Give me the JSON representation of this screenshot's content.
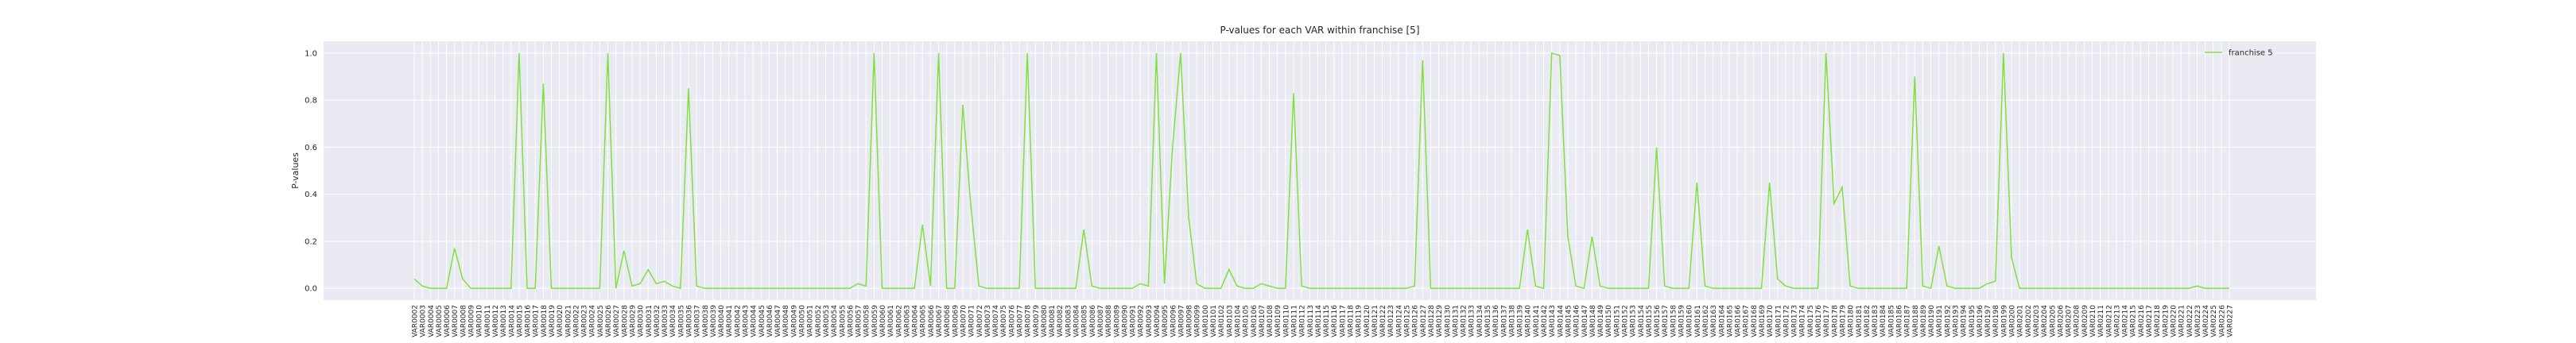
{
  "chart_data": {
    "type": "line",
    "title": "P-values for each VAR within franchise [5]",
    "y_label": "P-values",
    "categories": [
      "VAR0002",
      "VAR0003",
      "VAR0004",
      "VAR0005",
      "VAR0006",
      "VAR0007",
      "VAR0008",
      "VAR0009",
      "VAR0010",
      "VAR0011",
      "VAR0012",
      "VAR0013",
      "VAR0014",
      "VAR0015",
      "VAR0016",
      "VAR0017",
      "VAR0018",
      "VAR0019",
      "VAR0020",
      "VAR0021",
      "VAR0022",
      "VAR0023",
      "VAR0024",
      "VAR0025",
      "VAR0026",
      "VAR0027",
      "VAR0028",
      "VAR0029",
      "VAR0030",
      "VAR0031",
      "VAR0032",
      "VAR0033",
      "VAR0034",
      "VAR0035",
      "VAR0036",
      "VAR0037",
      "VAR0038",
      "VAR0039",
      "VAR0040",
      "VAR0041",
      "VAR0042",
      "VAR0043",
      "VAR0044",
      "VAR0045",
      "VAR0046",
      "VAR0047",
      "VAR0048",
      "VAR0049",
      "VAR0050",
      "VAR0051",
      "VAR0052",
      "VAR0053",
      "VAR0054",
      "VAR0055",
      "VAR0056",
      "VAR0057",
      "VAR0058",
      "VAR0059",
      "VAR0060",
      "VAR0061",
      "VAR0062",
      "VAR0063",
      "VAR0064",
      "VAR0065",
      "VAR0066",
      "VAR0067",
      "VAR0068",
      "VAR0069",
      "VAR0070",
      "VAR0071",
      "VAR0072",
      "VAR0073",
      "VAR0074",
      "VAR0075",
      "VAR0076",
      "VAR0077",
      "VAR0078",
      "VAR0079",
      "VAR0080",
      "VAR0081",
      "VAR0082",
      "VAR0083",
      "VAR0084",
      "VAR0085",
      "VAR0086",
      "VAR0087",
      "VAR0088",
      "VAR0089",
      "VAR0090",
      "VAR0091",
      "VAR0092",
      "VAR0093",
      "VAR0094",
      "VAR0095",
      "VAR0096",
      "VAR0097",
      "VAR0098",
      "VAR0099",
      "VAR0100",
      "VAR0101",
      "VAR0102",
      "VAR0103",
      "VAR0104",
      "VAR0105",
      "VAR0106",
      "VAR0107",
      "VAR0108",
      "VAR0109",
      "VAR0110",
      "VAR0111",
      "VAR0112",
      "VAR0113",
      "VAR0114",
      "VAR0115",
      "VAR0116",
      "VAR0117",
      "VAR0118",
      "VAR0119",
      "VAR0120",
      "VAR0121",
      "VAR0122",
      "VAR0123",
      "VAR0124",
      "VAR0125",
      "VAR0126",
      "VAR0127",
      "VAR0128",
      "VAR0129",
      "VAR0130",
      "VAR0131",
      "VAR0132",
      "VAR0133",
      "VAR0134",
      "VAR0135",
      "VAR0136",
      "VAR0137",
      "VAR0138",
      "VAR0139",
      "VAR0140",
      "VAR0141",
      "VAR0142",
      "VAR0143",
      "VAR0144",
      "VAR0145",
      "VAR0146",
      "VAR0147",
      "VAR0148",
      "VAR0149",
      "VAR0150",
      "VAR0151",
      "VAR0152",
      "VAR0153",
      "VAR0154",
      "VAR0155",
      "VAR0156",
      "VAR0157",
      "VAR0158",
      "VAR0159",
      "VAR0160",
      "VAR0161",
      "VAR0162",
      "VAR0163",
      "VAR0164",
      "VAR0165",
      "VAR0166",
      "VAR0167",
      "VAR0168",
      "VAR0169",
      "VAR0170",
      "VAR0171",
      "VAR0172",
      "VAR0173",
      "VAR0174",
      "VAR0175",
      "VAR0176",
      "VAR0177",
      "VAR0178",
      "VAR0179",
      "VAR0180",
      "VAR0181",
      "VAR0182",
      "VAR0183",
      "VAR0184",
      "VAR0185",
      "VAR0186",
      "VAR0187",
      "VAR0188",
      "VAR0189",
      "VAR0190",
      "VAR0191",
      "VAR0192",
      "VAR0193",
      "VAR0194",
      "VAR0195",
      "VAR0196",
      "VAR0197",
      "VAR0198",
      "VAR0199",
      "VAR0200",
      "VAR0201",
      "VAR0202",
      "VAR0203",
      "VAR0204",
      "VAR0205",
      "VAR0206",
      "VAR0207",
      "VAR0208",
      "VAR0209",
      "VAR0210",
      "VAR0211",
      "VAR0212",
      "VAR0213",
      "VAR0214",
      "VAR0215",
      "VAR0216",
      "VAR0217",
      "VAR0218",
      "VAR0219",
      "VAR0220",
      "VAR0221",
      "VAR0222",
      "VAR0223",
      "VAR0224",
      "VAR0225",
      "VAR0226",
      "VAR0227"
    ],
    "series": [
      {
        "name": "franchise 5",
        "color": "#80e040",
        "values": [
          0.04,
          0.01,
          0,
          0,
          0,
          0.17,
          0.04,
          0,
          0,
          0,
          0,
          0,
          0,
          1.0,
          0,
          0,
          0.87,
          0,
          0,
          0,
          0,
          0,
          0,
          0,
          1.0,
          0,
          0.16,
          0.01,
          0.02,
          0.08,
          0.02,
          0.03,
          0.01,
          0,
          0.85,
          0.01,
          0,
          0,
          0,
          0,
          0,
          0,
          0,
          0,
          0,
          0,
          0,
          0,
          0,
          0,
          0,
          0,
          0,
          0,
          0,
          0.02,
          0.01,
          1.0,
          0,
          0,
          0,
          0,
          0,
          0.27,
          0.01,
          1.0,
          0,
          0,
          0.78,
          0.35,
          0.01,
          0,
          0,
          0,
          0,
          0,
          1.0,
          0,
          0,
          0,
          0,
          0,
          0,
          0.25,
          0.01,
          0,
          0,
          0,
          0,
          0,
          0.02,
          0.01,
          1.0,
          0.02,
          0.6,
          1.0,
          0.3,
          0.02,
          0,
          0,
          0,
          0.08,
          0.01,
          0,
          0,
          0.02,
          0.01,
          0,
          0,
          0.83,
          0.01,
          0,
          0,
          0,
          0,
          0,
          0,
          0,
          0,
          0,
          0,
          0,
          0,
          0,
          0.01,
          0.97,
          0,
          0,
          0,
          0,
          0,
          0,
          0,
          0,
          0,
          0,
          0,
          0,
          0.25,
          0.01,
          0,
          1.0,
          0.99,
          0.22,
          0.01,
          0,
          0.22,
          0.01,
          0,
          0,
          0,
          0,
          0,
          0,
          0.6,
          0.01,
          0,
          0,
          0,
          0.45,
          0.01,
          0,
          0,
          0,
          0,
          0,
          0,
          0,
          0.45,
          0.04,
          0.01,
          0,
          0,
          0,
          0,
          1.0,
          0.36,
          0.43,
          0.01,
          0,
          0,
          0,
          0,
          0,
          0,
          0,
          0.9,
          0.01,
          0,
          0.18,
          0.01,
          0,
          0,
          0,
          0,
          0.02,
          0.03,
          1.0,
          0.13,
          0,
          0,
          0,
          0,
          0,
          0,
          0,
          0,
          0,
          0,
          0,
          0,
          0,
          0,
          0,
          0,
          0,
          0,
          0,
          0,
          0,
          0,
          0.01,
          0,
          0,
          0,
          0
        ]
      }
    ],
    "ylim": [
      -0.05,
      1.05
    ],
    "yticks": [
      {
        "value": 0,
        "label": "0.0"
      },
      {
        "value": 0.2,
        "label": "0.2"
      },
      {
        "value": 0.4,
        "label": "0.4"
      },
      {
        "value": 0.6,
        "label": "0.6"
      },
      {
        "value": 0.8,
        "label": "0.8"
      },
      {
        "value": 1,
        "label": "1.0"
      }
    ],
    "grid": true,
    "legend": "upper right"
  }
}
